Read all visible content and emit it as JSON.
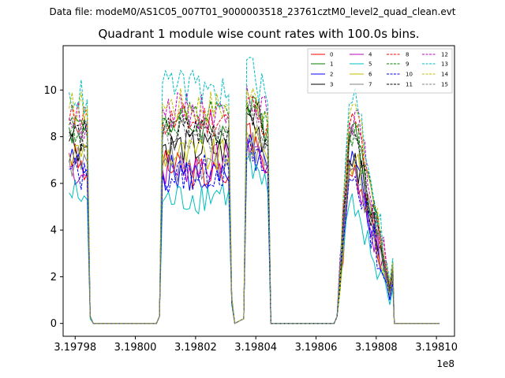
{
  "figure": {
    "suptitle": "Data file: modeM0/AS1C05_007T01_9000003518_23761cztM0_level2_quad_clean.evt",
    "title": "Quadrant 1 module wise count rates with 100.0s bins."
  },
  "chart_data": {
    "type": "line",
    "title": "Quadrant 1 module wise count rates with 100.0s bins.",
    "xlabel": "",
    "ylabel": "",
    "x_offset_label": "1e8",
    "xlim": [
      319797.6,
      319810.6
    ],
    "ylim": [
      -0.55,
      11.9
    ],
    "xticks": [
      319798,
      319800,
      319802,
      319804,
      319806,
      319808,
      319810
    ],
    "xtick_labels": [
      "3.19798",
      "3.19800",
      "3.19802",
      "3.19804",
      "3.19806",
      "3.19808",
      "3.19810"
    ],
    "yticks": [
      0,
      2,
      4,
      6,
      8,
      10
    ],
    "ytick_labels": [
      "0",
      "2",
      "4",
      "6",
      "8",
      "10"
    ],
    "legend_position": "top-right",
    "x_breakpoints": [
      319797.8,
      319798.4,
      319798.5,
      319798.6,
      319800.7,
      319800.8,
      319800.9,
      319803.1,
      319803.2,
      319803.3,
      319803.6,
      319803.7,
      319804.4,
      319804.5,
      319806.6,
      319806.7,
      319807.1,
      319807.3,
      319808.35,
      319808.45,
      319808.55,
      319808.6,
      319808.7,
      319810.1
    ],
    "series": [
      {
        "name": "0",
        "color": "#ff0000",
        "dash": "solid",
        "values": [
          7.3,
          6.4,
          0.3,
          0,
          0,
          0.3,
          6.7,
          6.3,
          0.9,
          0,
          0.2,
          8.5,
          6.5,
          0,
          0,
          0.3,
          6.4,
          6.8,
          1.9,
          1.2,
          2.0,
          0,
          0,
          0
        ]
      },
      {
        "name": "1",
        "color": "#008000",
        "dash": "solid",
        "values": [
          8.4,
          8.6,
          0.3,
          0,
          0,
          0.3,
          8.8,
          8.2,
          1.1,
          0,
          0.2,
          9.3,
          8.4,
          0,
          0,
          0.3,
          8.0,
          8.6,
          2.2,
          1.5,
          2.4,
          0,
          0,
          0
        ]
      },
      {
        "name": "2",
        "color": "#0000ff",
        "dash": "solid",
        "values": [
          6.9,
          6.6,
          0.3,
          0,
          0,
          0.3,
          6.5,
          6.1,
          0.9,
          0,
          0.2,
          7.5,
          6.6,
          0,
          0,
          0.3,
          6.5,
          6.9,
          1.7,
          1.0,
          1.8,
          0,
          0,
          0
        ]
      },
      {
        "name": "3",
        "color": "#000000",
        "dash": "solid",
        "values": [
          7.8,
          7.6,
          0.3,
          0,
          0,
          0.3,
          7.6,
          7.4,
          1.0,
          0,
          0.2,
          9.0,
          7.6,
          0,
          0,
          0.3,
          7.0,
          7.3,
          1.9,
          1.3,
          2.1,
          0,
          0,
          0
        ]
      },
      {
        "name": "4",
        "color": "#c000c0",
        "dash": "solid",
        "values": [
          6.7,
          6.3,
          0.3,
          0,
          0,
          0.3,
          6.6,
          7.0,
          1.0,
          0,
          0.2,
          8.0,
          6.8,
          0,
          0,
          0.3,
          6.5,
          6.6,
          1.8,
          1.1,
          1.9,
          0,
          0,
          0
        ]
      },
      {
        "name": "5",
        "color": "#00bfbf",
        "dash": "solid",
        "values": [
          5.6,
          5.3,
          0.2,
          0,
          0,
          0.3,
          5.2,
          5.7,
          0.8,
          0,
          0.2,
          7.0,
          5.6,
          0,
          0,
          0.3,
          5.1,
          4.6,
          1.4,
          0.8,
          1.5,
          0,
          0,
          0
        ]
      },
      {
        "name": "6",
        "color": "#bfbf00",
        "dash": "solid",
        "values": [
          7.2,
          7.5,
          0.3,
          0,
          0,
          0.3,
          7.3,
          7.1,
          1.0,
          0,
          0.2,
          8.2,
          7.0,
          0,
          0,
          0.3,
          6.8,
          7.0,
          1.8,
          1.2,
          2.0,
          0,
          0,
          0
        ]
      },
      {
        "name": "7",
        "color": "#808080",
        "dash": "solid",
        "values": [
          7.0,
          6.9,
          0.3,
          0,
          0,
          0.3,
          6.8,
          6.9,
          0.9,
          0,
          0.2,
          7.8,
          6.9,
          0,
          0,
          0.3,
          6.6,
          6.7,
          1.7,
          1.1,
          1.9,
          0,
          0,
          0
        ]
      },
      {
        "name": "8",
        "color": "#ff0000",
        "dash": "dashed",
        "values": [
          8.7,
          8.9,
          0.3,
          0,
          0,
          0.3,
          8.6,
          8.8,
          1.1,
          0,
          0.2,
          9.6,
          8.6,
          0,
          0,
          0.3,
          8.4,
          8.7,
          2.3,
          1.6,
          2.5,
          0,
          0,
          0
        ]
      },
      {
        "name": "9",
        "color": "#008000",
        "dash": "dashed",
        "values": [
          8.5,
          8.3,
          0.3,
          0,
          0,
          0.3,
          8.5,
          8.9,
          1.1,
          0,
          0.2,
          9.5,
          8.5,
          0,
          0,
          0.3,
          8.1,
          8.4,
          2.2,
          1.5,
          2.4,
          0,
          0,
          0
        ]
      },
      {
        "name": "10",
        "color": "#0000ff",
        "dash": "dashed",
        "values": [
          6.6,
          6.2,
          0.3,
          0,
          0,
          0.3,
          6.3,
          6.6,
          0.9,
          0,
          0.2,
          7.4,
          6.4,
          0,
          0,
          0.3,
          6.2,
          6.3,
          1.7,
          1.0,
          1.8,
          0,
          0,
          0
        ]
      },
      {
        "name": "11",
        "color": "#000000",
        "dash": "dashed",
        "values": [
          8.2,
          8.0,
          0.3,
          0,
          0,
          0.3,
          8.1,
          8.4,
          1.0,
          0,
          0.2,
          9.3,
          8.0,
          0,
          0,
          0.3,
          7.8,
          8.1,
          2.1,
          1.4,
          2.2,
          0,
          0,
          0
        ]
      },
      {
        "name": "12",
        "color": "#c000c0",
        "dash": "dashed",
        "values": [
          8.8,
          8.7,
          0.3,
          0,
          0,
          0.3,
          9.2,
          9.0,
          1.1,
          0,
          0.2,
          10.2,
          8.8,
          0,
          0,
          0.3,
          8.6,
          9.1,
          2.4,
          1.6,
          2.6,
          0,
          0,
          0
        ]
      },
      {
        "name": "13",
        "color": "#00bfbf",
        "dash": "dashed",
        "values": [
          9.9,
          9.6,
          0.3,
          0,
          0,
          0.3,
          10.3,
          9.8,
          1.2,
          0,
          0.2,
          11.3,
          9.4,
          0,
          0,
          0.3,
          9.4,
          10.1,
          2.6,
          1.8,
          2.8,
          0,
          0,
          0
        ]
      },
      {
        "name": "14",
        "color": "#bfbf00",
        "dash": "dashed",
        "values": [
          9.2,
          9.3,
          0.3,
          0,
          0,
          0.3,
          9.4,
          9.3,
          1.1,
          0,
          0.2,
          10.0,
          9.0,
          0,
          0,
          0.3,
          8.9,
          9.4,
          2.4,
          1.7,
          2.6,
          0,
          0,
          0
        ]
      },
      {
        "name": "15",
        "color": "#808080",
        "dash": "dashed",
        "values": [
          8.0,
          7.8,
          0.3,
          0,
          0,
          0.3,
          7.9,
          8.1,
          1.0,
          0,
          0.2,
          9.0,
          7.9,
          0,
          0,
          0.3,
          7.6,
          7.9,
          2.0,
          1.3,
          2.2,
          0,
          0,
          0
        ]
      }
    ]
  }
}
